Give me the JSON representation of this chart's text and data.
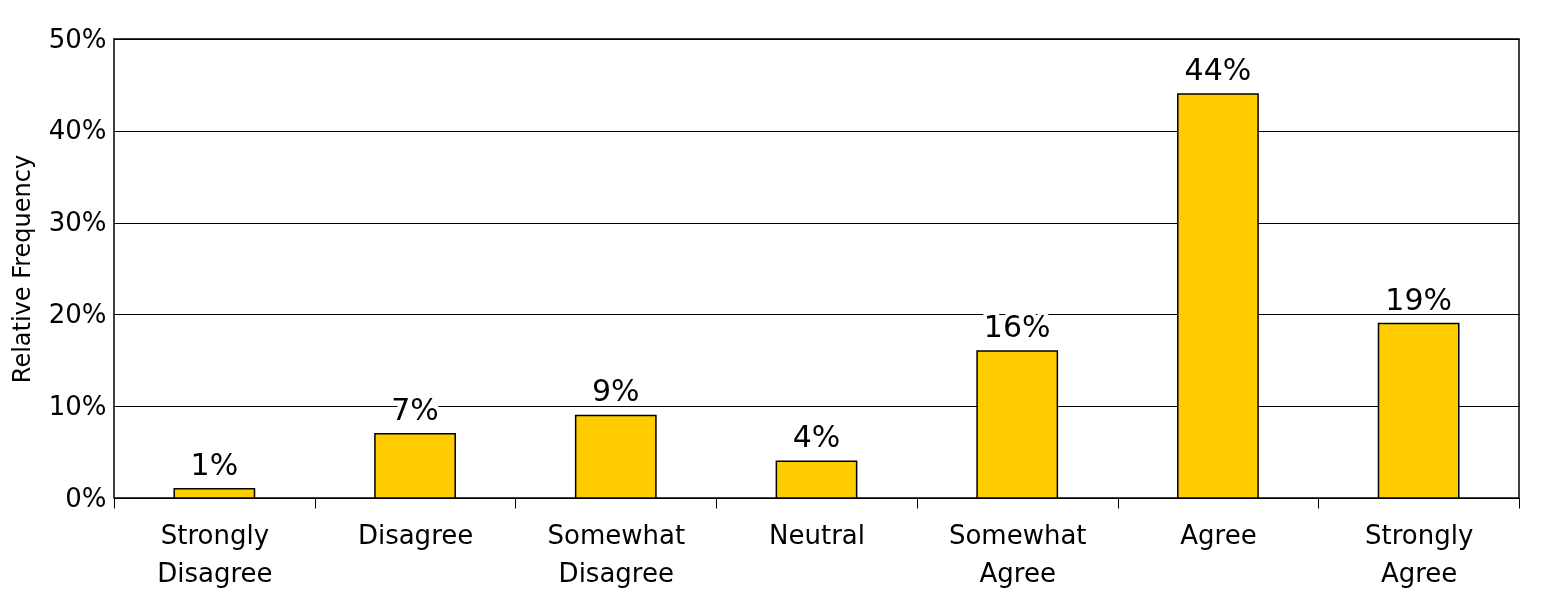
{
  "chart_data": {
    "type": "bar",
    "ylabel": "Relative Frequency",
    "categories": [
      "Strongly Disagree",
      "Disagree",
      "Somewhat Disagree",
      "Neutral",
      "Somewhat Agree",
      "Agree",
      "Strongly Agree"
    ],
    "values": [
      1,
      7,
      9,
      4,
      16,
      44,
      19
    ],
    "value_labels": [
      "1%",
      "7%",
      "9%",
      "4%",
      "16%",
      "44%",
      "19%"
    ],
    "color": "#ffcc00",
    "ylim": [
      0,
      50
    ],
    "yticks": [
      {
        "value": 0,
        "label": "0%"
      },
      {
        "value": 10,
        "label": "10%"
      },
      {
        "value": 20,
        "label": "20%"
      },
      {
        "value": 30,
        "label": "30%"
      },
      {
        "value": 40,
        "label": "40%"
      },
      {
        "value": 50,
        "label": "50%"
      }
    ],
    "grid": "y"
  }
}
